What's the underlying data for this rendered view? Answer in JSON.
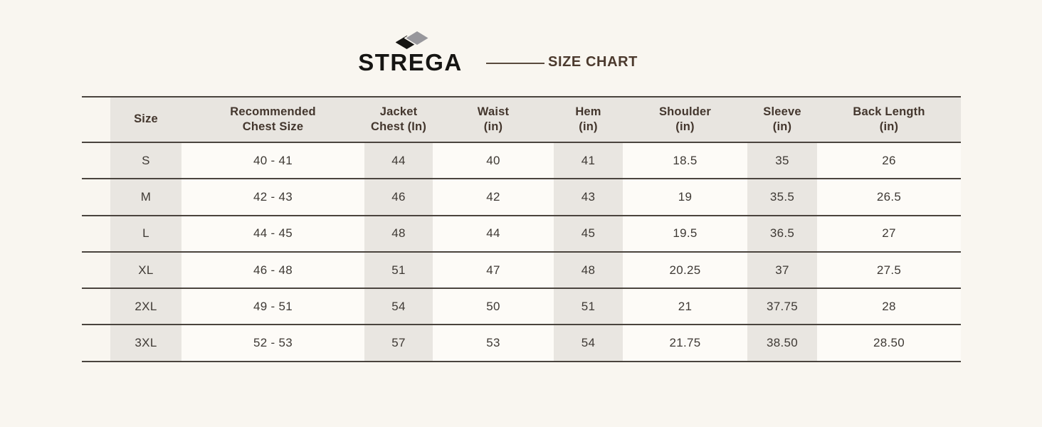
{
  "brand": {
    "name": "STREGA",
    "logo_icon": "overlapping-diamonds-icon",
    "title": "SIZE CHART"
  },
  "colors": {
    "page_background": "#f9f6f0",
    "stripe_gray": "#e9e6e1",
    "header_gray": "#e8e5e0",
    "rule_dark": "#4a443e",
    "brand_black": "#161513",
    "diamond_gray": "#98979c",
    "title_brown": "#4c3a2e"
  },
  "table": {
    "headers": [
      "Size",
      "Recommended\nChest Size",
      "Jacket\nChest (In)",
      "Waist\n(in)",
      "Hem\n(in)",
      "Shoulder\n(in)",
      "Sleeve\n(in)",
      "Back Length\n(in)"
    ]
  },
  "chart_data": {
    "type": "table",
    "title": "SIZE CHART",
    "columns": [
      "Size",
      "Recommended Chest Size",
      "Jacket Chest (In)",
      "Waist (in)",
      "Hem (in)",
      "Shoulder (in)",
      "Sleeve (in)",
      "Back Length (in)"
    ],
    "rows": [
      [
        "S",
        "40 - 41",
        "44",
        "40",
        "41",
        "18.5",
        "35",
        "26"
      ],
      [
        "M",
        "42 - 43",
        "46",
        "42",
        "43",
        "19",
        "35.5",
        "26.5"
      ],
      [
        "L",
        "44 - 45",
        "48",
        "44",
        "45",
        "19.5",
        "36.5",
        "27"
      ],
      [
        "XL",
        "46 - 48",
        "51",
        "47",
        "48",
        "20.25",
        "37",
        "27.5"
      ],
      [
        "2XL",
        "49 - 51",
        "54",
        "50",
        "51",
        "21",
        "37.75",
        "28"
      ],
      [
        "3XL",
        "52 - 53",
        "57",
        "53",
        "54",
        "21.75",
        "38.50",
        "28.50"
      ]
    ]
  }
}
